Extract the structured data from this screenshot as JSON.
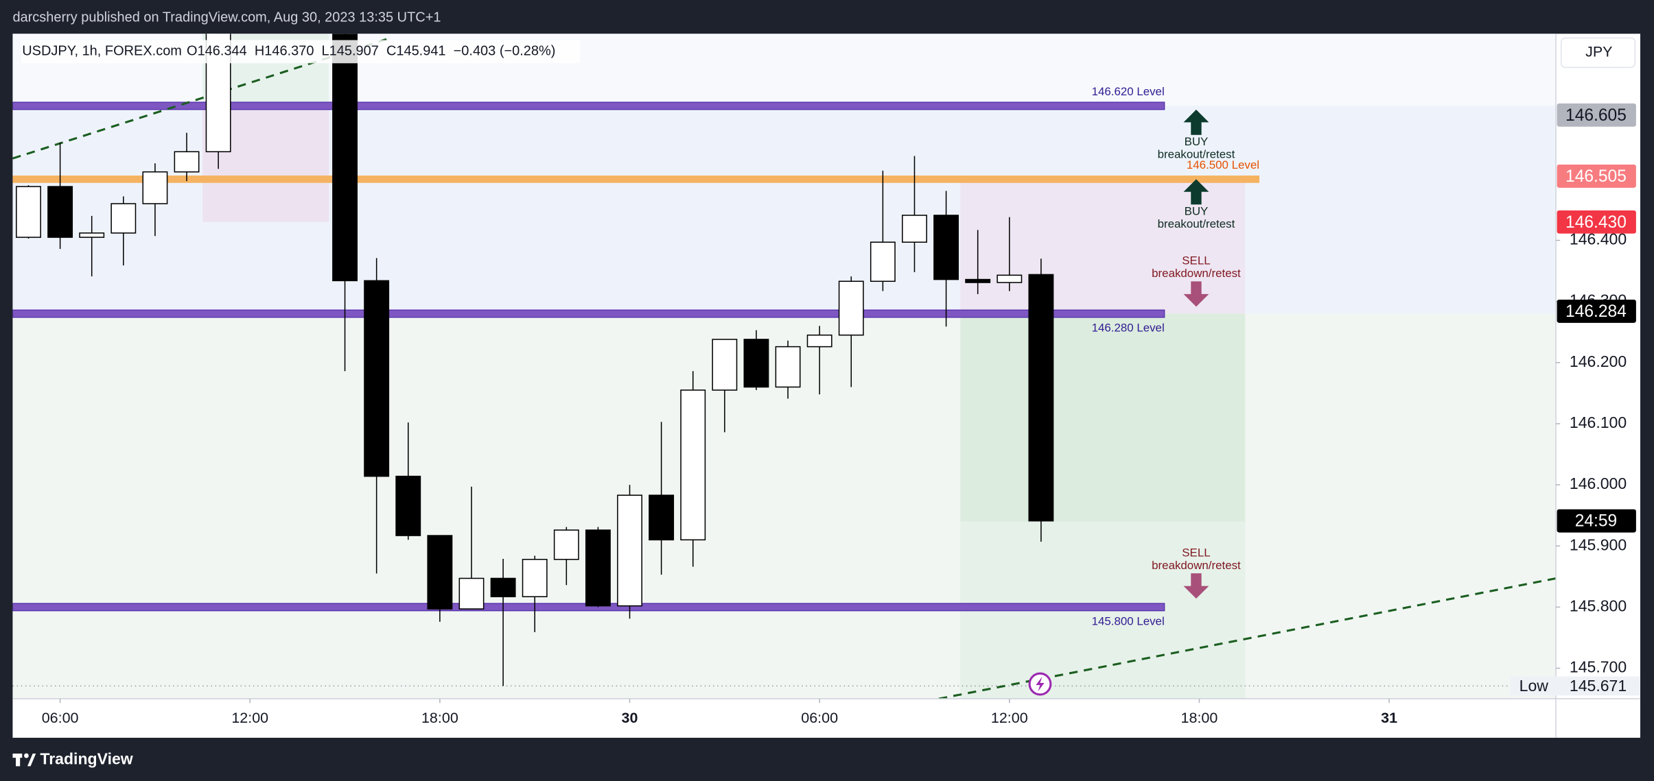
{
  "publisher": "darcsherry published on TradingView.com, Aug 30, 2023 13:35 UTC+1",
  "brand": "TradingView",
  "chart_data": {
    "type": "candlestick",
    "symbol": "USDJPY, 1h, FOREX.com",
    "ohlc_header": "O146.344  H146.370  L145.907  C145.941  −0.403 (−0.28%)",
    "currency": "JPY",
    "x": [
      5,
      6,
      7,
      8,
      9,
      10,
      11,
      15,
      16,
      17,
      18,
      19,
      20,
      21,
      22,
      23,
      24,
      25,
      26,
      27,
      28,
      29,
      30,
      31,
      32,
      33,
      34,
      35,
      36,
      37
    ],
    "open": [
      146.405,
      146.488,
      146.405,
      146.412,
      146.46,
      146.512,
      146.545,
      146.8,
      146.334,
      146.014,
      145.917,
      145.797,
      145.847,
      145.817,
      145.878,
      145.926,
      145.802,
      145.983,
      145.91,
      146.155,
      146.238,
      146.16,
      146.226,
      146.245,
      146.333,
      146.397,
      146.441,
      146.336,
      146.331,
      146.344
    ],
    "high": [
      146.49,
      146.56,
      146.44,
      146.472,
      146.526,
      146.576,
      146.8,
      146.85,
      146.371,
      146.102,
      145.917,
      145.997,
      145.879,
      145.884,
      145.931,
      145.931,
      146.0,
      146.103,
      146.186,
      146.238,
      146.253,
      146.236,
      146.26,
      146.341,
      146.514,
      146.538,
      146.481,
      146.417,
      146.438,
      146.37
    ],
    "low": [
      146.403,
      146.386,
      146.341,
      146.359,
      146.407,
      146.497,
      146.517,
      146.186,
      145.855,
      145.91,
      145.776,
      145.797,
      145.671,
      145.759,
      145.836,
      145.8,
      145.781,
      145.853,
      145.866,
      146.086,
      146.155,
      146.141,
      146.148,
      146.16,
      146.317,
      146.348,
      146.259,
      146.312,
      146.317,
      145.907
    ],
    "close": [
      146.488,
      146.405,
      146.412,
      146.46,
      146.512,
      146.545,
      146.78,
      146.334,
      146.014,
      145.917,
      145.797,
      145.847,
      145.817,
      145.878,
      145.926,
      145.802,
      145.983,
      145.91,
      146.155,
      146.238,
      146.16,
      146.226,
      146.245,
      146.333,
      146.397,
      146.441,
      146.336,
      146.331,
      146.343,
      145.941
    ],
    "up_color": "#ffffff",
    "down_color": "#000000",
    "border_color": "#000000",
    "xlim": [
      4.5,
      53.27
    ],
    "xticks": [
      {
        "value": 6,
        "label": "06:00"
      },
      {
        "value": 12,
        "label": "12:00"
      },
      {
        "value": 18,
        "label": "18:00"
      },
      {
        "value": 24,
        "label": "30"
      },
      {
        "value": 30,
        "label": "06:00"
      },
      {
        "value": 36,
        "label": "12:00"
      },
      {
        "value": 42,
        "label": "18:00"
      },
      {
        "value": 48,
        "label": "31"
      }
    ],
    "ylim": [
      145.65,
      146.738
    ],
    "yticks": [
      {
        "value": 146.4,
        "label": "146.400"
      },
      {
        "value": 146.3,
        "label": "146.300"
      },
      {
        "value": 146.2,
        "label": "146.200"
      },
      {
        "value": 146.1,
        "label": "146.100"
      },
      {
        "value": 146.0,
        "label": "146.000"
      },
      {
        "value": 145.9,
        "label": "145.900"
      },
      {
        "value": 145.8,
        "label": "145.800"
      },
      {
        "value": 145.7,
        "label": "145.700"
      }
    ],
    "grid": false,
    "levels": [
      {
        "value": 146.62,
        "label": "146.620 Level",
        "color": "#7e57c2",
        "text_color": "#311b92",
        "end": 40.9
      },
      {
        "value": 146.5,
        "label": "146.500 Level",
        "color": "#f5b362",
        "text_color": "#e65100",
        "end": 43.9
      },
      {
        "value": 146.28,
        "label": "146.280 Level",
        "color": "#7e57c2",
        "text_color": "#311b92",
        "end": 40.9
      },
      {
        "value": 145.8,
        "label": "145.800 Level",
        "color": "#7e57c2",
        "text_color": "#311b92",
        "end": 40.9
      }
    ],
    "zones": [
      {
        "x": [
          10.5,
          14.5
        ],
        "y": [
          146.62,
          146.76
        ],
        "color": "rgba(76,175,80,0.09)"
      },
      {
        "x": [
          10.5,
          14.5
        ],
        "y": [
          146.43,
          146.62
        ],
        "color": "rgba(233,30,99,0.07)"
      },
      {
        "x": [
          34.45,
          43.45
        ],
        "y": [
          146.28,
          146.5
        ],
        "color": "rgba(233,30,99,0.06)"
      },
      {
        "x": [
          34.45,
          43.45
        ],
        "y": [
          145.94,
          146.28
        ],
        "color": "rgba(76,175,80,0.12)"
      },
      {
        "x": [
          34.45,
          43.45
        ],
        "y": [
          145.65,
          145.94
        ],
        "color": "rgba(76,175,80,0.06)"
      }
    ],
    "trend_lines": [
      {
        "points": [
          [
            4.5,
            146.534
          ],
          [
            16.43,
            146.731
          ]
        ],
        "color": "#1b5e20"
      },
      {
        "points": [
          [
            33.77,
            145.65
          ],
          [
            53.27,
            145.847
          ]
        ],
        "color": "#1b5e20"
      }
    ],
    "annotations": [
      {
        "title": "BUY",
        "subtitle": "breakout/retest",
        "direction": "up",
        "color": "#0d3b2e"
      },
      {
        "title": "BUY",
        "subtitle": "breakout/retest",
        "direction": "up",
        "color": "#0d3b2e"
      },
      {
        "title": "SELL",
        "subtitle": "breakdown/retest",
        "direction": "down",
        "color": "#a8507a"
      },
      {
        "title": "SELL",
        "subtitle": "breakdown/retest",
        "direction": "down",
        "color": "#a8507a"
      }
    ],
    "price_badges": [
      {
        "value": 146.605,
        "label": "146.605",
        "bg": "#b2b5be",
        "fg": "#131722"
      },
      {
        "value": 146.505,
        "label": "146.505",
        "bg": "#f77c80",
        "fg": "#ffffff"
      },
      {
        "value": 146.43,
        "label": "146.430",
        "bg": "#f23645",
        "fg": "#ffffff"
      },
      {
        "value": 146.284,
        "label": "146.284",
        "bg": "#000000",
        "fg": "#ffffff"
      },
      {
        "value": 145.941,
        "label": "24:59",
        "bg": "#000000",
        "fg": "#ffffff"
      }
    ],
    "low_marker": {
      "label": "Low",
      "value": 145.671
    }
  }
}
